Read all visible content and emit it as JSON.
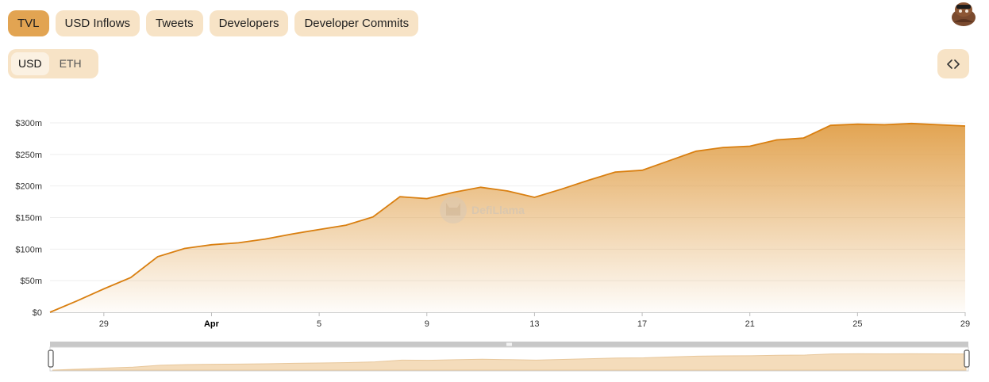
{
  "tabs": [
    {
      "label": "TVL",
      "active": true
    },
    {
      "label": "USD Inflows",
      "active": false
    },
    {
      "label": "Tweets",
      "active": false
    },
    {
      "label": "Developers",
      "active": false
    },
    {
      "label": "Developer Commits",
      "active": false
    }
  ],
  "denomination": {
    "options": [
      "USD",
      "ETH"
    ],
    "selected": "USD"
  },
  "embed_icon": "code-brackets-icon",
  "avatar_icon": "user-avatar-icon",
  "watermark": "DefiLlama",
  "colors": {
    "accent": "#e2a452",
    "line": "#d97f10",
    "tab_bg": "#f7e3c6",
    "slider_track": "#c8c8c8"
  },
  "chart_data": {
    "type": "area",
    "x_unit": "day",
    "x": [
      "Mar 27",
      "Mar 28",
      "Mar 29",
      "Mar 30",
      "Mar 31",
      "Apr 1",
      "Apr 2",
      "Apr 3",
      "Apr 4",
      "Apr 5",
      "Apr 6",
      "Apr 7",
      "Apr 8",
      "Apr 9",
      "Apr 10",
      "Apr 11",
      "Apr 12",
      "Apr 13",
      "Apr 14",
      "Apr 15",
      "Apr 16",
      "Apr 17",
      "Apr 18",
      "Apr 19",
      "Apr 20",
      "Apr 21",
      "Apr 22",
      "Apr 23",
      "Apr 24",
      "Apr 25",
      "Apr 26",
      "Apr 27",
      "Apr 28",
      "Apr 29",
      "Apr 30"
    ],
    "series": [
      {
        "values": [
          0,
          18,
          37,
          55,
          88,
          101,
          107,
          110,
          116,
          124,
          131,
          138,
          151,
          183,
          180,
          190,
          198,
          192,
          182,
          195,
          209,
          222,
          225,
          240,
          255,
          261,
          263,
          273,
          276,
          296,
          298,
          297,
          299,
          297,
          295
        ]
      }
    ],
    "x_ticks": [
      "29",
      "Apr",
      "5",
      "9",
      "13",
      "17",
      "21",
      "25",
      "29"
    ],
    "y_ticks": [
      "$0",
      "$50m",
      "$100m",
      "$150m",
      "$200m",
      "$250m",
      "$300m"
    ],
    "ylim": [
      0,
      300
    ],
    "grid": true,
    "legend": "none"
  }
}
